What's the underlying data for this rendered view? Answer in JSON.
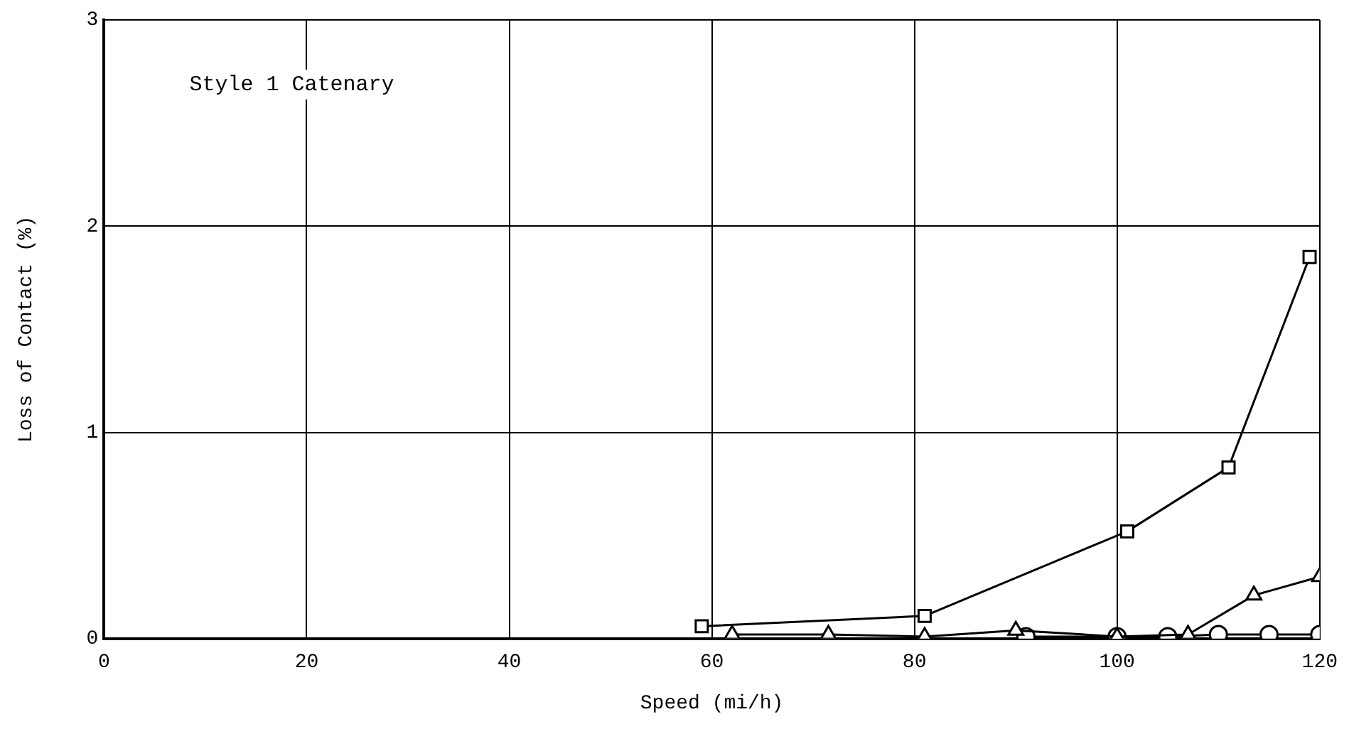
{
  "chart_data": {
    "type": "line",
    "xlabel": "Speed (mi/h)",
    "ylabel": "Loss of Contact (%)",
    "annotations": [
      "Style 1 Catenary"
    ],
    "xlim": [
      0,
      120
    ],
    "xticks": [
      0,
      20,
      40,
      60,
      80,
      100,
      120
    ],
    "ylim": [
      0,
      3
    ],
    "yticks": [
      0,
      1,
      2,
      3
    ],
    "grid": true,
    "legend": false,
    "line_style": "solid",
    "series": [
      {
        "color": "#000000",
        "marker": "square",
        "x": [
          59,
          81,
          101,
          111,
          119
        ],
        "values": [
          0.06,
          0.11,
          0.52,
          0.83,
          1.85
        ]
      },
      {
        "color": "#000000",
        "marker": "triangle",
        "x": [
          62,
          71.5,
          81,
          90,
          100,
          107,
          113.5,
          120
        ],
        "values": [
          0.02,
          0.02,
          0.01,
          0.04,
          0.01,
          0.02,
          0.21,
          0.3
        ]
      },
      {
        "color": "#000000",
        "marker": "circle",
        "x": [
          91,
          100,
          105,
          110,
          115,
          120
        ],
        "values": [
          0.01,
          0.01,
          0.01,
          0.02,
          0.02,
          0.02
        ]
      }
    ]
  }
}
